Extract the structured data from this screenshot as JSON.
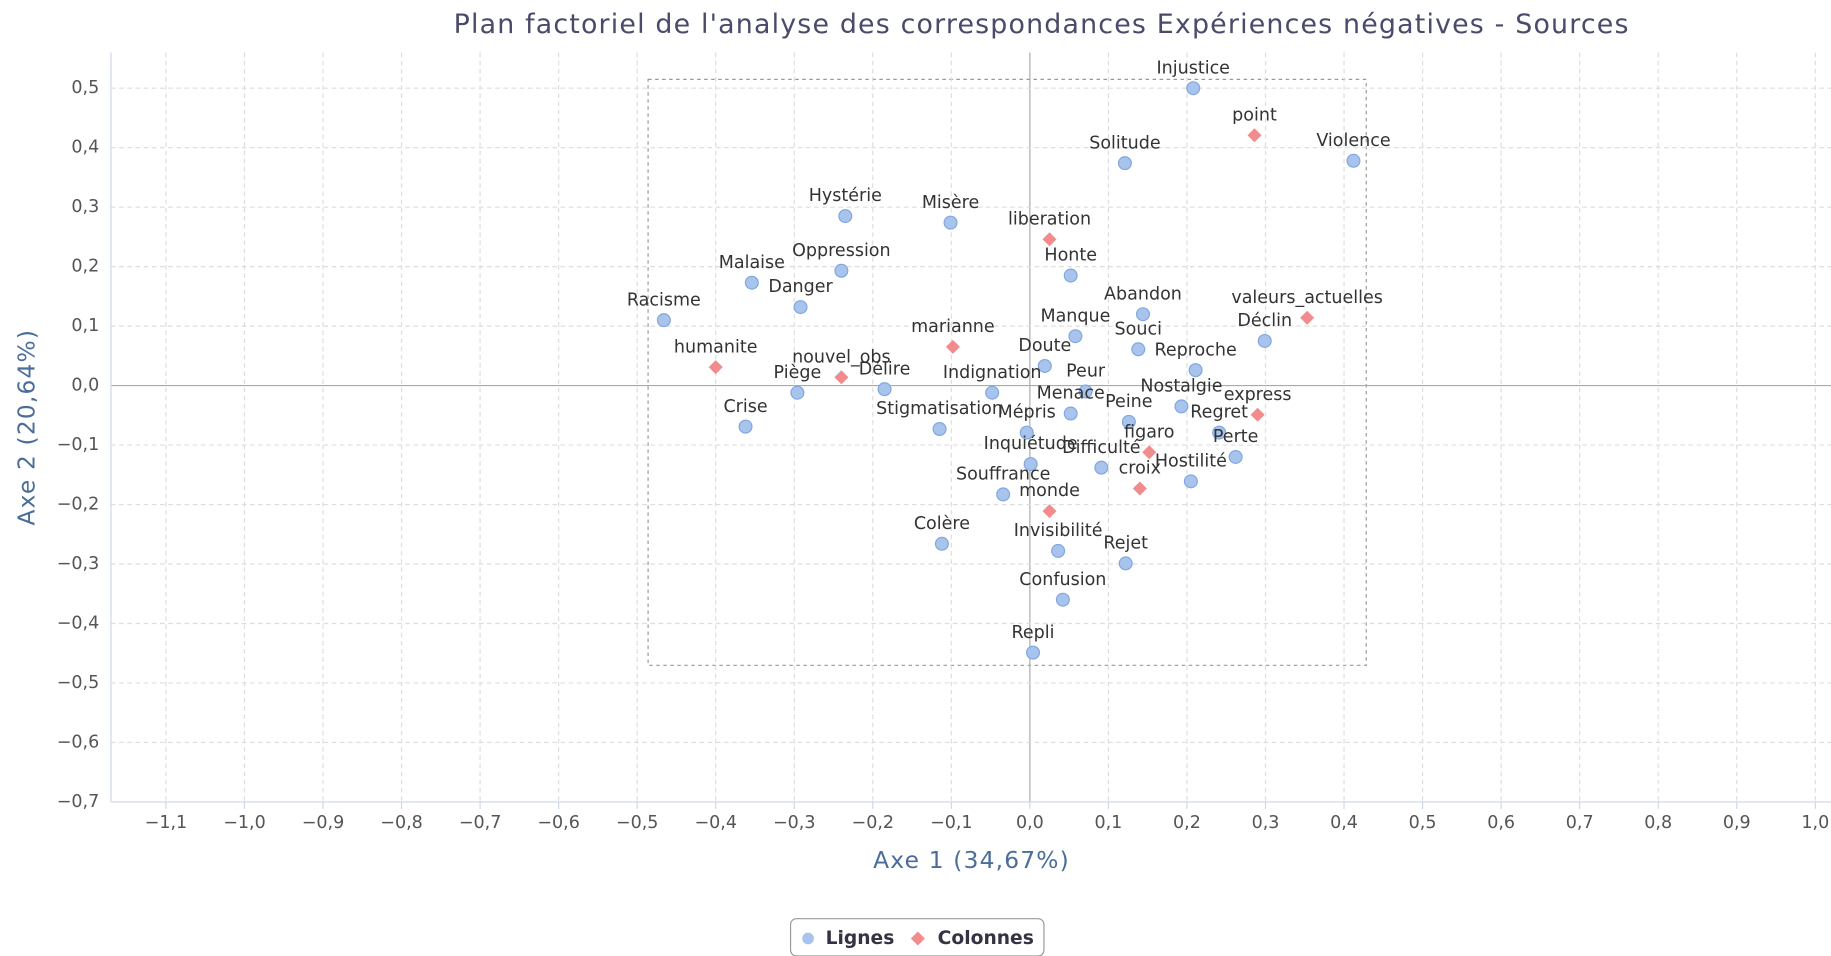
{
  "chart_data": {
    "type": "scatter",
    "title": "Plan factoriel de l'analyse des correspondances Expériences négatives - Sources",
    "xlabel": "Axe 1 (34,67%)",
    "ylabel": "Axe 2 (20,64%)",
    "xlim": [
      -1.17,
      1.02
    ],
    "ylim": [
      -0.7,
      0.56
    ],
    "grid": true,
    "legend": "bottom",
    "xticks": [
      {
        "value": -1.1,
        "label": "−1,1"
      },
      {
        "value": -1.0,
        "label": "−1,0"
      },
      {
        "value": -0.9,
        "label": "−0,9"
      },
      {
        "value": -0.8,
        "label": "−0,8"
      },
      {
        "value": -0.7,
        "label": "−0,7"
      },
      {
        "value": -0.6,
        "label": "−0,6"
      },
      {
        "value": -0.5,
        "label": "−0,5"
      },
      {
        "value": -0.4,
        "label": "−0,4"
      },
      {
        "value": -0.3,
        "label": "−0,3"
      },
      {
        "value": -0.2,
        "label": "−0,2"
      },
      {
        "value": -0.1,
        "label": "−0,1"
      },
      {
        "value": 0,
        "label": "0,0"
      },
      {
        "value": 0.1,
        "label": "0,1"
      },
      {
        "value": 0.2,
        "label": "0,2"
      },
      {
        "value": 0.3,
        "label": "0,3"
      },
      {
        "value": 0.4,
        "label": "0,4"
      },
      {
        "value": 0.5,
        "label": "0,5"
      },
      {
        "value": 0.6,
        "label": "0,6"
      },
      {
        "value": 0.7,
        "label": "0,7"
      },
      {
        "value": 0.8,
        "label": "0,8"
      },
      {
        "value": 0.9,
        "label": "0,9"
      },
      {
        "value": 1.0,
        "label": "1,0"
      }
    ],
    "yticks": [
      {
        "value": 0.5,
        "label": "0,5"
      },
      {
        "value": 0.4,
        "label": "0,4"
      },
      {
        "value": 0.3,
        "label": "0,3"
      },
      {
        "value": 0.2,
        "label": "0,2"
      },
      {
        "value": 0.1,
        "label": "0,1"
      },
      {
        "value": 0,
        "label": "0,0"
      },
      {
        "value": -0.1,
        "label": "−0,1"
      },
      {
        "value": -0.2,
        "label": "−0,2"
      },
      {
        "value": -0.3,
        "label": "−0,3"
      },
      {
        "value": -0.4,
        "label": "−0,4"
      },
      {
        "value": -0.5,
        "label": "−0,5"
      },
      {
        "value": -0.6,
        "label": "−0,6"
      },
      {
        "value": -0.7,
        "label": "−0,7"
      }
    ],
    "series": [
      {
        "name": "Lignes",
        "color": "#a9c4ec",
        "marker": "circle",
        "labels": [
          "Injustice",
          "Solitude",
          "Violence",
          "Hystérie",
          "Misère",
          "Honte",
          "Malaise",
          "Oppression",
          "Danger",
          "Abandon",
          "Racisme",
          "Manque",
          "Déclin",
          "Souci",
          "Doute",
          "Reproche",
          "Délire",
          "Piège",
          "Indignation",
          "Peur",
          "Nostalgie",
          "Menace",
          "Crise",
          "Peine",
          "Stigmatisation",
          "Mépris",
          "Regret",
          "Perte",
          "Difficulté",
          "Inquiétude",
          "Hostilité",
          "Souffrance",
          "Colère",
          "Invisibilité",
          "Rejet",
          "Confusion",
          "Repli"
        ],
        "x": [
          0.208,
          0.121,
          0.412,
          -0.235,
          -0.101,
          0.052,
          -0.354,
          -0.24,
          -0.292,
          0.144,
          -0.466,
          0.058,
          0.299,
          0.138,
          0.019,
          0.211,
          -0.185,
          -0.296,
          -0.048,
          0.071,
          0.193,
          0.052,
          -0.362,
          0.126,
          -0.115,
          -0.004,
          0.241,
          0.262,
          0.091,
          0.001,
          0.205,
          -0.034,
          -0.112,
          0.036,
          0.122,
          0.042,
          0.004
        ],
        "values": [
          0.5,
          0.374,
          0.378,
          0.285,
          0.274,
          0.185,
          0.173,
          0.193,
          0.132,
          0.12,
          0.11,
          0.083,
          0.075,
          0.061,
          0.033,
          0.026,
          -0.006,
          -0.012,
          -0.012,
          -0.01,
          -0.035,
          -0.047,
          -0.069,
          -0.061,
          -0.073,
          -0.079,
          -0.079,
          -0.12,
          -0.138,
          -0.132,
          -0.161,
          -0.183,
          -0.266,
          -0.278,
          -0.299,
          -0.36,
          -0.449
        ]
      },
      {
        "name": "Colonnes",
        "color": "#f28b8b",
        "marker": "diamond",
        "labels": [
          "point",
          "liberation",
          "valeurs_actuelles",
          "marianne",
          "humanite",
          "nouvel_obs",
          "express",
          "figaro",
          "croix",
          "monde"
        ],
        "x": [
          0.286,
          0.025,
          0.353,
          -0.098,
          -0.4,
          -0.24,
          0.29,
          0.152,
          0.14,
          0.025
        ],
        "values": [
          0.421,
          0.246,
          0.114,
          0.065,
          0.031,
          0.014,
          -0.049,
          -0.112,
          -0.173,
          -0.211
        ]
      }
    ]
  }
}
